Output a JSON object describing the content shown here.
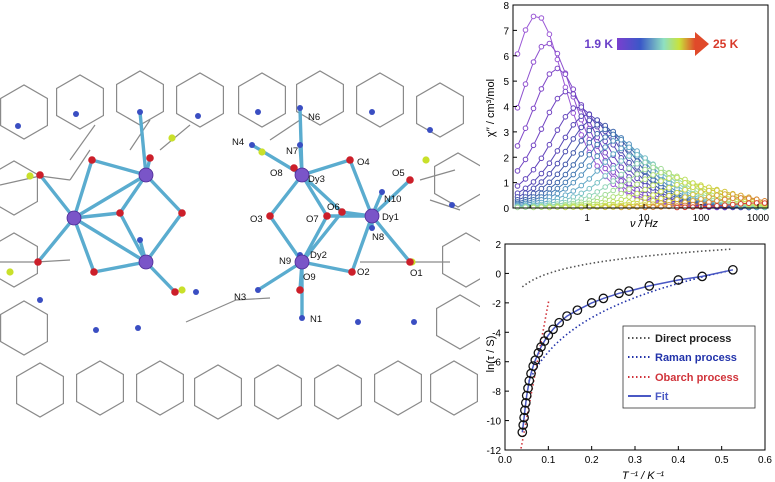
{
  "figure": {
    "structure_labels": [
      "N4",
      "N6",
      "N7",
      "O8",
      "Dy3",
      "O4",
      "O5",
      "N10",
      "O3",
      "O7",
      "O6",
      "Dy1",
      "N8",
      "N9",
      "Dy2",
      "O9",
      "O2",
      "O1",
      "N3",
      "N1"
    ]
  },
  "colors": {
    "bond": "#5aaccf",
    "ring": "#8a8a8a",
    "dy": "#7a55c8",
    "oxygen": "#cc1f2a",
    "nitrogen": "#3a4ec2",
    "fluorine": "#c9e02a"
  },
  "chart_data": [
    {
      "type": "line",
      "xscale": "log",
      "xlabel": "ν / Hz",
      "ylabel": "χ′′ / cm³/mol",
      "xlim": [
        0.05,
        1500
      ],
      "ylim": [
        0,
        8
      ],
      "xticks": [
        1,
        10,
        100,
        1000
      ],
      "xtick_labels": [
        "1",
        "10",
        "100",
        "1000"
      ],
      "yticks": [
        0,
        1,
        2,
        3,
        4,
        5,
        6,
        7,
        8
      ],
      "temperature_legend": {
        "start": "1.9 K",
        "end": "25 K"
      },
      "series_peaks": [
        7.6,
        6.5,
        5.5,
        4.6,
        4.0,
        3.7,
        3.5,
        3.3,
        3.1,
        2.9,
        2.7,
        2.4,
        2.1,
        1.8,
        1.6,
        1.4,
        1.2,
        1.0,
        0.85,
        0.7,
        0.55,
        0.4,
        0.2
      ],
      "series_peak_freq_hz": [
        0.13,
        0.2,
        0.3,
        0.45,
        0.7,
        1.0,
        1.3,
        1.7,
        2.2,
        2.8,
        3.6,
        5,
        7,
        10,
        15,
        22,
        35,
        60,
        100,
        170,
        300,
        500,
        1000
      ],
      "series_colors": [
        "#9b59d6",
        "#8e50cf",
        "#8048c8",
        "#7144c2",
        "#6344bc",
        "#5646b6",
        "#4a4cb0",
        "#4157aa",
        "#3d66ab",
        "#4478b2",
        "#5290bd",
        "#62a8c6",
        "#79c1c6",
        "#8fd3b6",
        "#a2dc98",
        "#b0e07a",
        "#bde062",
        "#c6dc4f",
        "#cdd443",
        "#d2c53c",
        "#d6aa36",
        "#d98533",
        "#d84030"
      ]
    },
    {
      "type": "scatter",
      "xlabel": "T⁻¹ / K⁻¹",
      "ylabel": "ln(τ / S)",
      "xlim": [
        0,
        0.6
      ],
      "ylim": [
        -12,
        2
      ],
      "xticks": [
        0.0,
        0.1,
        0.2,
        0.3,
        0.4,
        0.5,
        0.6
      ],
      "xtick_labels": [
        "0.0",
        "0.1",
        "0.2",
        "0.3",
        "0.4",
        "0.5",
        "0.6"
      ],
      "yticks": [
        -12,
        -10,
        -8,
        -6,
        -4,
        -2,
        0,
        2
      ],
      "points": [
        [
          0.04,
          -10.8
        ],
        [
          0.042,
          -10.3
        ],
        [
          0.044,
          -9.8
        ],
        [
          0.046,
          -9.3
        ],
        [
          0.048,
          -8.8
        ],
        [
          0.05,
          -8.3
        ],
        [
          0.053,
          -7.8
        ],
        [
          0.056,
          -7.3
        ],
        [
          0.06,
          -6.8
        ],
        [
          0.065,
          -6.3
        ],
        [
          0.07,
          -5.9
        ],
        [
          0.077,
          -5.4
        ],
        [
          0.083,
          -5.0
        ],
        [
          0.091,
          -4.6
        ],
        [
          0.1,
          -4.2
        ],
        [
          0.111,
          -3.8
        ],
        [
          0.125,
          -3.35
        ],
        [
          0.143,
          -2.9
        ],
        [
          0.167,
          -2.5
        ],
        [
          0.2,
          -2.0
        ],
        [
          0.227,
          -1.7
        ],
        [
          0.263,
          -1.35
        ],
        [
          0.286,
          -1.2
        ],
        [
          0.333,
          -0.85
        ],
        [
          0.4,
          -0.45
        ],
        [
          0.455,
          -0.2
        ],
        [
          0.526,
          0.25
        ]
      ],
      "legend": [
        {
          "label": "Direct process",
          "color": "#555555",
          "style": "dotted"
        },
        {
          "label": "Raman process",
          "color": "#2233aa",
          "style": "dotted"
        },
        {
          "label": "Obarch process",
          "color": "#d0333a",
          "style": "dotted"
        },
        {
          "label": "Fit",
          "color": "#4a58c4",
          "style": "solid"
        }
      ]
    }
  ]
}
